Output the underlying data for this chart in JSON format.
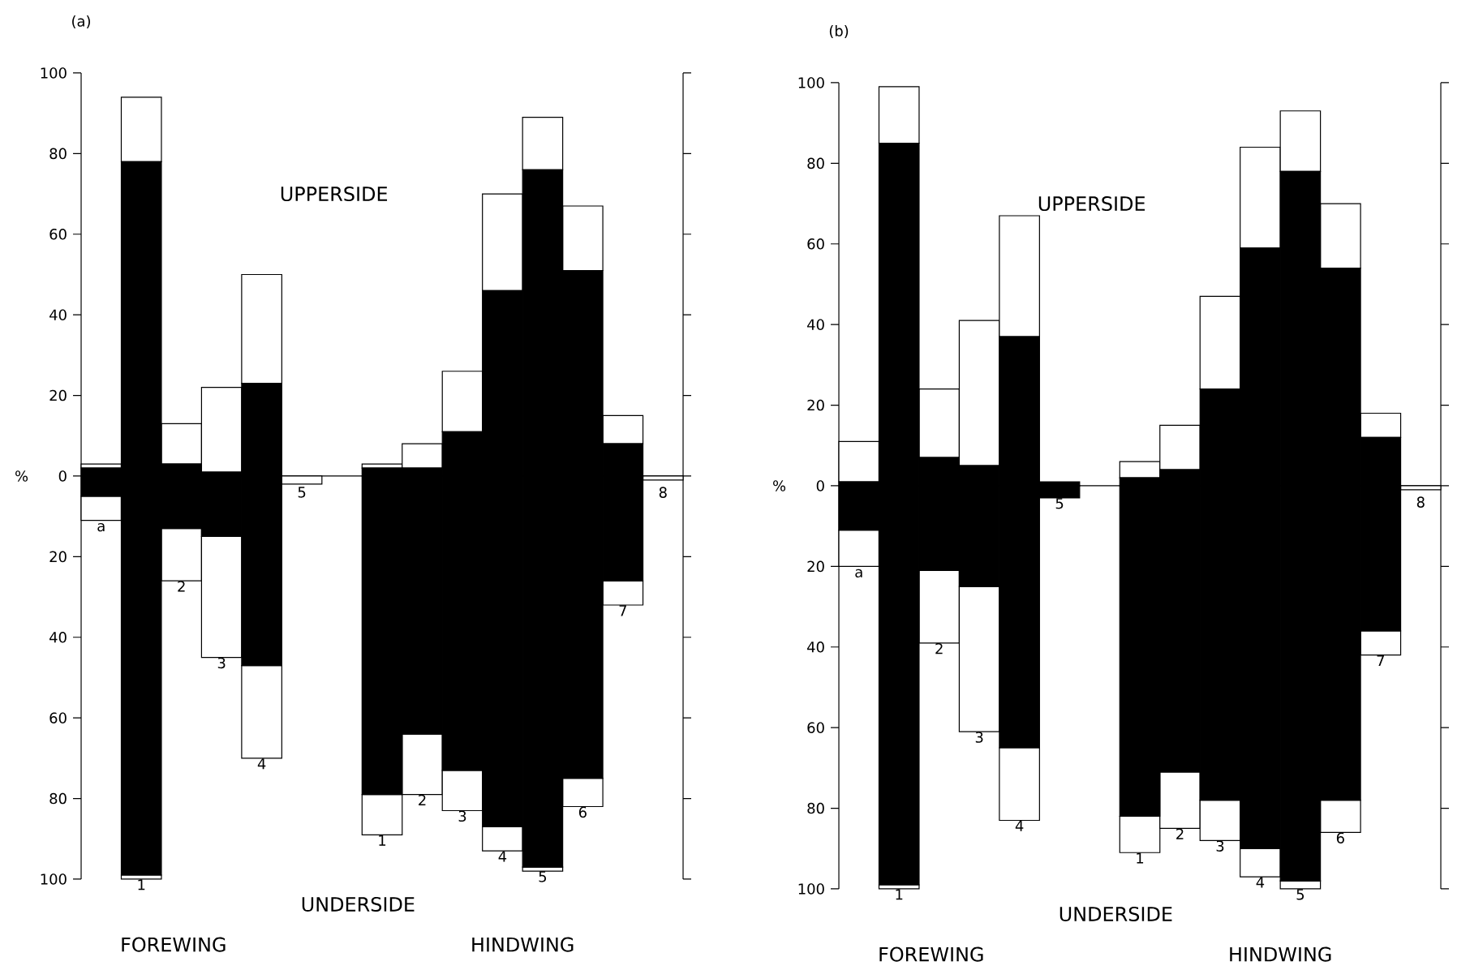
{
  "chart_data": [
    {
      "type": "bar",
      "title": "(a)",
      "ylabel": "%",
      "stacked": true,
      "annotations": [
        "UPPERSIDE",
        "UNDERSIDE",
        "FOREWING",
        "HINDWING"
      ],
      "categories": [
        "a",
        "1",
        "2",
        "3",
        "4",
        "5",
        null,
        "1",
        "2",
        "3",
        "4",
        "5",
        "6",
        "7",
        "8"
      ],
      "series": [
        {
          "color": "#000000",
          "values": [
            2,
            78,
            3,
            1,
            23,
            0,
            null,
            2,
            2,
            11,
            46,
            76,
            51,
            8,
            0
          ]
        },
        {
          "color": "#ffffff",
          "values": [
            1,
            16,
            10,
            21,
            27,
            0,
            null,
            1,
            6,
            15,
            24,
            13,
            16,
            7,
            0
          ]
        },
        {
          "color": "#000000",
          "values": [
            -5,
            -99,
            -13,
            -15,
            -47,
            0,
            null,
            -79,
            -64,
            -73,
            -87,
            -97,
            -75,
            -26,
            0
          ]
        },
        {
          "color": "#ffffff",
          "values": [
            -6,
            -1,
            -13,
            -30,
            -23,
            -2,
            null,
            -10,
            -15,
            -10,
            -6,
            -1,
            -7,
            -6,
            -1
          ]
        }
      ],
      "ylim": [
        -100,
        100
      ],
      "yticks": [
        {
          "value": -100,
          "label": "100"
        },
        {
          "value": -80,
          "label": "80"
        },
        {
          "value": -60,
          "label": "60"
        },
        {
          "value": -40,
          "label": "40"
        },
        {
          "value": -20,
          "label": "20"
        },
        0,
        20,
        40,
        60,
        80,
        100
      ]
    },
    {
      "type": "bar",
      "title": "(b)",
      "ylabel": "%",
      "stacked": true,
      "annotations": [
        "UPPERSIDE",
        "UNDERSIDE",
        "FOREWING",
        "HINDWING"
      ],
      "categories": [
        "a",
        "1",
        "2",
        "3",
        "4",
        "5",
        null,
        "1",
        "2",
        "3",
        "4",
        "5",
        "6",
        "7",
        "8"
      ],
      "series": [
        {
          "color": "#000000",
          "values": [
            1,
            85,
            7,
            5,
            37,
            1,
            null,
            2,
            4,
            24,
            59,
            78,
            54,
            12,
            0
          ]
        },
        {
          "color": "#ffffff",
          "values": [
            10,
            14,
            17,
            36,
            30,
            0,
            null,
            4,
            11,
            23,
            25,
            15,
            16,
            6,
            0
          ]
        },
        {
          "color": "#000000",
          "values": [
            -11,
            -99,
            -21,
            -25,
            -65,
            -3,
            null,
            -82,
            -71,
            -78,
            -90,
            -98,
            -78,
            -36,
            0
          ]
        },
        {
          "color": "#ffffff",
          "values": [
            -9,
            -1,
            -18,
            -36,
            -18,
            0,
            null,
            -9,
            -14,
            -10,
            -7,
            -2,
            -8,
            -6,
            -1
          ]
        }
      ],
      "ylim": [
        -100,
        100
      ],
      "yticks": [
        {
          "value": -100,
          "label": "100"
        },
        {
          "value": -80,
          "label": "80"
        },
        {
          "value": -60,
          "label": "60"
        },
        {
          "value": -40,
          "label": "40"
        },
        {
          "value": -20,
          "label": "20"
        },
        0,
        20,
        40,
        60,
        80,
        100
      ]
    }
  ]
}
